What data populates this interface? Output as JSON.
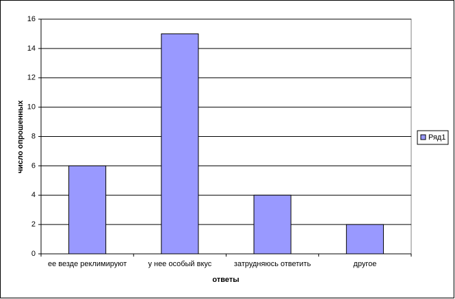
{
  "chart_data": {
    "type": "bar",
    "x_label": "ответы",
    "y_label": "число опрошенных",
    "categories": [
      "ее везде реклимируют",
      "у нее особый вкус",
      "затрудняюсь ответить",
      "другое"
    ],
    "series": [
      {
        "name": "Ряд1",
        "color": "#9999ff",
        "values": [
          6,
          15,
          4,
          2
        ]
      }
    ],
    "ylim": [
      0,
      16
    ],
    "yticks": [
      0,
      2,
      4,
      6,
      8,
      10,
      12,
      14,
      16
    ],
    "grid": true,
    "legend": "right"
  }
}
